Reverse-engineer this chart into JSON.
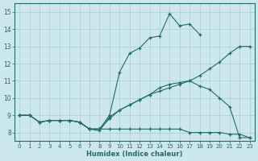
{
  "xlabel": "Humidex (Indice chaleur)",
  "bg_color": "#cce8ec",
  "grid_color": "#aacdd4",
  "line_color": "#236b6b",
  "xlim": [
    -0.5,
    23.5
  ],
  "ylim": [
    7.5,
    15.5
  ],
  "xticks": [
    0,
    1,
    2,
    3,
    4,
    5,
    6,
    7,
    8,
    9,
    10,
    11,
    12,
    13,
    14,
    15,
    16,
    17,
    18,
    19,
    20,
    21,
    22,
    23
  ],
  "yticks": [
    8,
    9,
    10,
    11,
    12,
    13,
    14,
    15
  ],
  "curve_upper_x": [
    0,
    1,
    2,
    3,
    4,
    5,
    6,
    7,
    8,
    9,
    10,
    11,
    12,
    13,
    14,
    15,
    16,
    17,
    18
  ],
  "curve_upper_y": [
    9.0,
    9.0,
    8.6,
    8.7,
    8.7,
    8.7,
    8.6,
    8.2,
    8.2,
    9.0,
    11.5,
    12.6,
    12.9,
    13.5,
    13.6,
    14.9,
    14.2,
    14.3,
    13.7
  ],
  "curve_diag_x": [
    0,
    1,
    2,
    3,
    4,
    5,
    6,
    7,
    8,
    9,
    10,
    11,
    12,
    13,
    14,
    15,
    16,
    17,
    18,
    19,
    20,
    21,
    22,
    23
  ],
  "curve_diag_y": [
    9.0,
    9.0,
    8.6,
    8.7,
    8.7,
    8.7,
    8.6,
    8.2,
    8.2,
    8.8,
    9.3,
    9.6,
    9.9,
    10.2,
    10.4,
    10.6,
    10.8,
    11.0,
    11.3,
    11.7,
    12.1,
    12.6,
    13.0,
    13.0
  ],
  "curve_lower_x": [
    0,
    1,
    2,
    3,
    4,
    5,
    6,
    7,
    8,
    9,
    10,
    11,
    12,
    13,
    14,
    15,
    16,
    17,
    18,
    19,
    20,
    21,
    22,
    23
  ],
  "curve_lower_y": [
    9.0,
    9.0,
    8.6,
    8.7,
    8.7,
    8.7,
    8.6,
    8.2,
    8.2,
    8.2,
    8.2,
    8.2,
    8.2,
    8.2,
    8.2,
    8.2,
    8.2,
    8.0,
    8.0,
    8.0,
    8.0,
    7.9,
    7.9,
    7.7
  ],
  "curve_mid_x": [
    6,
    7,
    8,
    9,
    10,
    11,
    12,
    13,
    14,
    15,
    16,
    17,
    18,
    19,
    20,
    21,
    22,
    23
  ],
  "curve_mid_y": [
    8.6,
    8.2,
    8.1,
    8.9,
    9.3,
    9.6,
    9.9,
    10.2,
    10.6,
    10.8,
    10.9,
    11.0,
    10.7,
    10.5,
    10.0,
    9.5,
    7.7,
    7.7
  ]
}
